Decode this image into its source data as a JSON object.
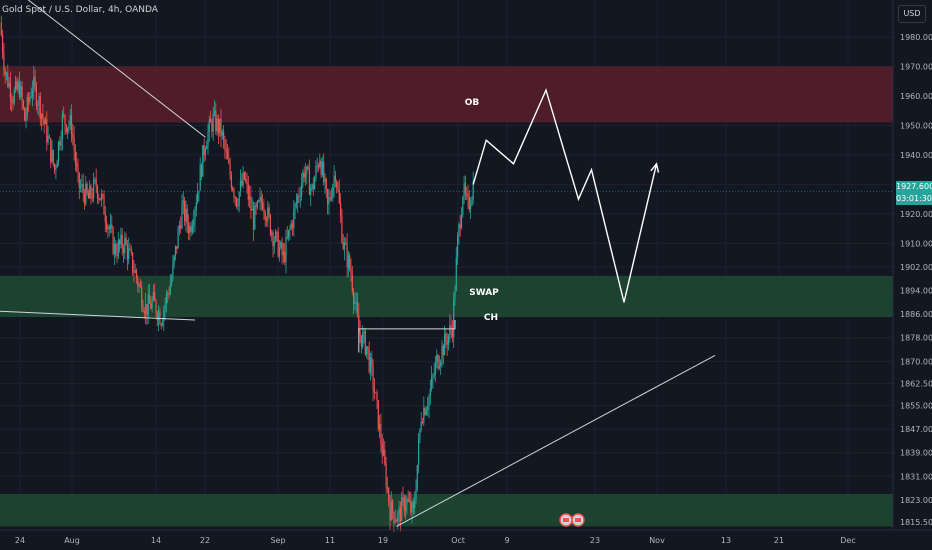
{
  "header": {
    "symbol_title": "Gold Spot / U.S. Dollar, 4h, OANDA",
    "currency_button": "USD"
  },
  "last_price": {
    "value": "1927.600",
    "countdown": "03:01:30"
  },
  "zones": {
    "ob_label": "OB",
    "swap_label": "SWAP",
    "ch_label": "CH"
  },
  "colors": {
    "background": "#131722",
    "up": "#26a69a",
    "down": "#ef5350",
    "ob_zone": "#5a1f2b",
    "green_zone": "#1f4a33",
    "projection": "#ffffff"
  },
  "chart_data": {
    "type": "candlestick",
    "title": "",
    "y_axis": {
      "ticks": [
        1980.0,
        1970.0,
        1960.0,
        1950.0,
        1940.0,
        1930.0,
        1920.0,
        1910.0,
        1902.0,
        1894.0,
        1886.0,
        1878.0,
        1870.0,
        1862.5,
        1855.0,
        1847.0,
        1839.0,
        1831.0,
        1823.0,
        1815.5
      ],
      "tick_labels": [
        "1980.00",
        "1970.00",
        "1960.00",
        "1950.00",
        "1940.00",
        "1930.00",
        "1920.00",
        "1910.00",
        "1902.00",
        "1894.00",
        "1886.00",
        "1878.00",
        "1870.00",
        "1862.50",
        "1855.00",
        "1847.00",
        "1839.00",
        "1831.00",
        "1823.00",
        "1815.50"
      ]
    },
    "x_axis": {
      "tick_labels": [
        "24",
        "Aug",
        "14",
        "22",
        "Sep",
        "11",
        "19",
        "Oct",
        "9",
        "23",
        "Nov",
        "13",
        "21",
        "Dec"
      ]
    },
    "grid": true,
    "zones": [
      {
        "name": "OB",
        "price_low": 1951,
        "price_high": 1970
      },
      {
        "name": "SWAP",
        "price_low": 1885,
        "price_high": 1899
      },
      {
        "name": "",
        "price_low": 1814,
        "price_high": 1825
      }
    ],
    "ch_level": 1881,
    "price_path": [
      [
        0,
        1985
      ],
      [
        4,
        1968
      ],
      [
        10,
        1960
      ],
      [
        15,
        1963
      ],
      [
        19,
        1952
      ],
      [
        25,
        1964
      ],
      [
        30,
        1958
      ],
      [
        36,
        1947
      ],
      [
        42,
        1935
      ],
      [
        48,
        1952
      ],
      [
        55,
        1950
      ],
      [
        60,
        1930
      ],
      [
        68,
        1925
      ],
      [
        74,
        1930
      ],
      [
        80,
        1922
      ],
      [
        88,
        1908
      ],
      [
        96,
        1910
      ],
      [
        104,
        1900
      ],
      [
        112,
        1888
      ],
      [
        118,
        1890
      ],
      [
        124,
        1885
      ],
      [
        132,
        1898
      ],
      [
        140,
        1922
      ],
      [
        146,
        1915
      ],
      [
        152,
        1928
      ],
      [
        158,
        1945
      ],
      [
        164,
        1952
      ],
      [
        170,
        1948
      ],
      [
        176,
        1935
      ],
      [
        182,
        1925
      ],
      [
        188,
        1932
      ],
      [
        195,
        1918
      ],
      [
        202,
        1925
      ],
      [
        210,
        1913
      ],
      [
        218,
        1905
      ],
      [
        226,
        1920
      ],
      [
        234,
        1935
      ],
      [
        240,
        1928
      ],
      [
        246,
        1940
      ],
      [
        252,
        1922
      ],
      [
        258,
        1935
      ],
      [
        264,
        1910
      ],
      [
        270,
        1900
      ],
      [
        276,
        1880
      ],
      [
        282,
        1875
      ],
      [
        288,
        1860
      ],
      [
        294,
        1840
      ],
      [
        300,
        1820
      ],
      [
        306,
        1817
      ],
      [
        312,
        1823
      ],
      [
        318,
        1818
      ],
      [
        324,
        1852
      ],
      [
        330,
        1858
      ],
      [
        336,
        1870
      ],
      [
        342,
        1876
      ],
      [
        348,
        1882
      ],
      [
        352,
        1910
      ],
      [
        356,
        1928
      ],
      [
        360,
        1922
      ],
      [
        364,
        1930
      ]
    ],
    "projection_path": [
      [
        364,
        1930
      ],
      [
        374,
        1945
      ],
      [
        395,
        1937
      ],
      [
        420,
        1962
      ],
      [
        445,
        1925
      ],
      [
        455,
        1935
      ],
      [
        480,
        1890
      ],
      [
        505,
        1937
      ]
    ],
    "trendlines": [
      {
        "name": "descending-resistance",
        "from": [
          0,
          2000
        ],
        "to": [
          158,
          1946
        ]
      },
      {
        "name": "flat-support",
        "from": [
          -50,
          1888
        ],
        "to": [
          150,
          1884
        ]
      },
      {
        "name": "rising-support",
        "from": [
          305,
          1814
        ],
        "to": [
          550,
          1872
        ]
      }
    ],
    "last_price": 1927.6
  }
}
